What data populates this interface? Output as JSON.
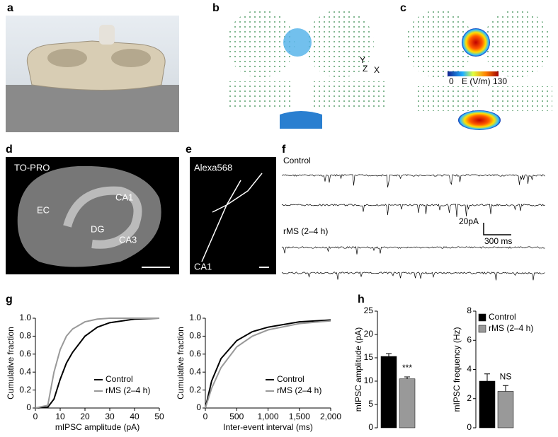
{
  "figure": {
    "panel_labels": [
      "a",
      "b",
      "c",
      "d",
      "e",
      "f",
      "g",
      "h"
    ],
    "axes_triad": {
      "y": "Y",
      "z": "Z",
      "x": "X"
    },
    "colorbar": {
      "min": "0",
      "label": "E (V/m)",
      "max": "130"
    },
    "d_labels": {
      "stain": "TO-PRO",
      "ec": "EC",
      "ca1": "CA1",
      "dg": "DG",
      "ca3": "CA3"
    },
    "e_labels": {
      "stain": "Alexa568",
      "ca1": "CA1"
    },
    "f_labels": {
      "control": "Control",
      "scale_y": "20pA",
      "scale_x": "300 ms",
      "rms": "rMS (2–4 h)"
    }
  },
  "chart_data": [
    {
      "type": "line",
      "xlabel": "mIPSC amplitude (pA)",
      "ylabel": "Cumulative fraction",
      "x": [
        0,
        5,
        7.5,
        10,
        12.5,
        15,
        20,
        25,
        30,
        40,
        50
      ],
      "series": [
        {
          "name": "Control",
          "color": "#000000",
          "values": [
            0,
            0.01,
            0.1,
            0.32,
            0.5,
            0.62,
            0.8,
            0.9,
            0.95,
            0.99,
            1
          ]
        },
        {
          "name": "rMS (2–4 h)",
          "color": "#999999",
          "values": [
            0,
            0.03,
            0.4,
            0.65,
            0.8,
            0.88,
            0.96,
            0.99,
            1,
            1,
            1
          ]
        }
      ],
      "xlim": [
        0,
        50
      ],
      "xticks": [
        0,
        10,
        20,
        30,
        40,
        50
      ],
      "ylim": [
        0,
        1
      ],
      "yticks": [
        0,
        0.2,
        0.4,
        0.6,
        0.8,
        {
          "value": 1,
          "label": "1.0"
        }
      ]
    },
    {
      "type": "line",
      "xlabel": "Inter-event interval (ms)",
      "ylabel": "Cumulative fraction",
      "x": [
        0,
        100,
        250,
        500,
        750,
        1000,
        1500,
        2000
      ],
      "series": [
        {
          "name": "Control",
          "color": "#000000",
          "values": [
            0,
            0.3,
            0.55,
            0.75,
            0.85,
            0.9,
            0.96,
            0.98
          ]
        },
        {
          "name": "rMS (2–4 h)",
          "color": "#999999",
          "values": [
            0,
            0.22,
            0.45,
            0.68,
            0.8,
            0.87,
            0.94,
            0.97
          ]
        }
      ],
      "xlim": [
        0,
        2000
      ],
      "xticks": [
        0,
        500,
        {
          "value": 1000,
          "label": "1,000"
        },
        {
          "value": 1500,
          "label": "1,500"
        },
        {
          "value": 2000,
          "label": "2,000"
        }
      ],
      "ylim": [
        0,
        1
      ],
      "yticks": [
        0,
        0.2,
        0.4,
        0.6,
        0.8,
        {
          "value": 1,
          "label": "1.0"
        }
      ]
    },
    {
      "type": "bar",
      "ylabel": "mIPSC amplitude (pA)",
      "values": [
        15.3,
        10.5
      ],
      "errors": [
        0.6,
        0.4
      ],
      "colors": [
        "#000000",
        "#999999"
      ],
      "annotation": "***",
      "ylim": [
        0,
        25
      ],
      "yticks": [
        0,
        5,
        10,
        15,
        20,
        25
      ]
    },
    {
      "type": "bar",
      "ylabel": "mIPSC frequency (Hz)",
      "categories": [
        "Control",
        "rMS (2–4 h)"
      ],
      "values": [
        3.2,
        2.5
      ],
      "errors": [
        0.5,
        0.4
      ],
      "colors": [
        "#000000",
        "#999999"
      ],
      "annotation": "NS",
      "ylim": [
        0,
        8
      ],
      "yticks": [
        0,
        2,
        4,
        6,
        8
      ]
    }
  ]
}
